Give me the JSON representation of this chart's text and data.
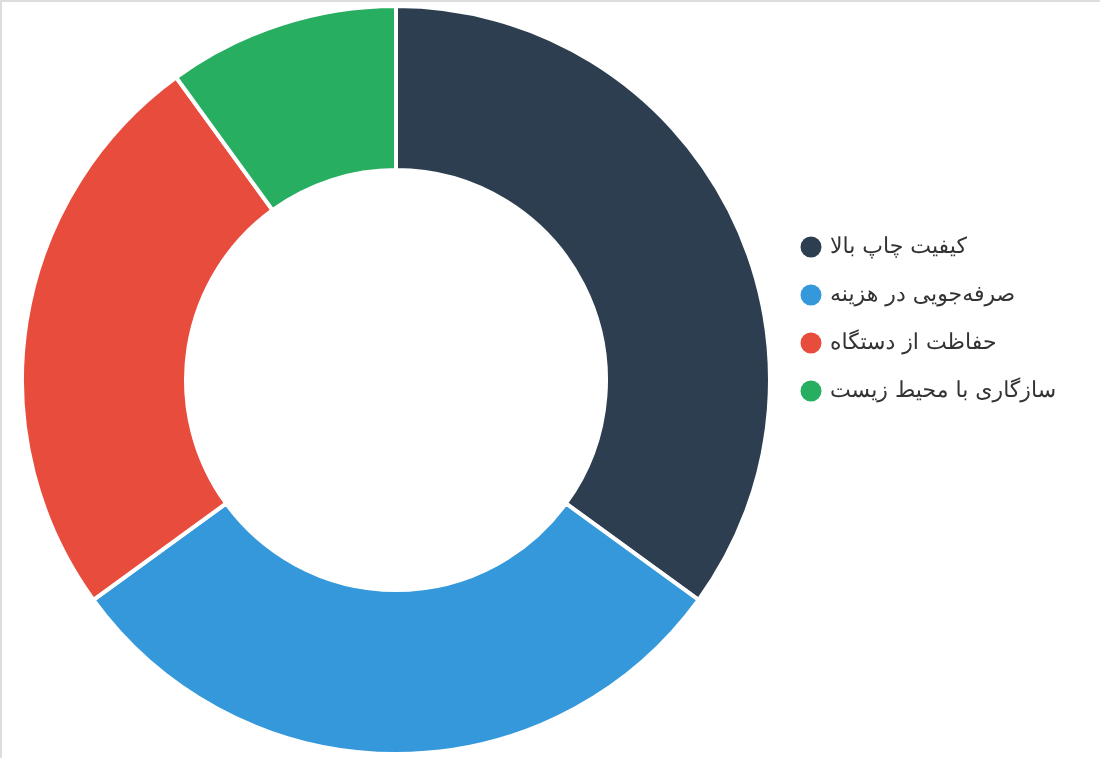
{
  "chart_data": {
    "type": "donut",
    "categories": [
      "کیفیت چاپ بالا",
      "صرفه‌جویی در هزینه",
      "حفاظت از دستگاه",
      "سازگاری با محیط زیست"
    ],
    "values": [
      35,
      30,
      25,
      10
    ],
    "colors": [
      "#2c3e50",
      "#3498db",
      "#e74c3c",
      "#27ae60"
    ],
    "legend": "right"
  }
}
